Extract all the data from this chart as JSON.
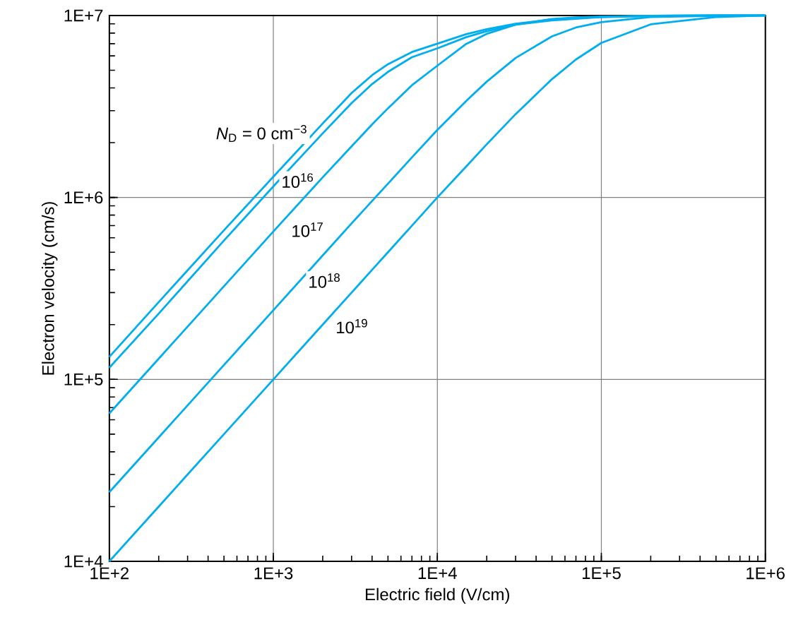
{
  "chart_data": {
    "type": "line",
    "xlabel": "Electric field (V/cm)",
    "ylabel": "Electron velocity (cm/s)",
    "x": [
      100,
      200,
      500,
      1000,
      2000,
      3000,
      4000,
      5000,
      7000,
      10000,
      15000,
      20000,
      30000,
      50000,
      70000,
      100000,
      200000,
      500000,
      1000000
    ],
    "series": [
      {
        "name": "*N*$_{D}$ = 0 cm$^{−3}$",
        "color": "#00aeef",
        "values": [
          133000,
          266000,
          660000,
          1300000,
          2550000,
          3750000,
          4700000,
          5400000,
          6300000,
          7000000,
          7900000,
          8400000,
          9000000,
          9500000,
          9700000,
          9800000,
          9950000,
          10000000,
          10000000
        ]
      },
      {
        "name": "10$^{16}$",
        "color": "#00aeef",
        "values": [
          116000,
          230000,
          580000,
          1150000,
          2250000,
          3300000,
          4200000,
          4900000,
          5900000,
          6600000,
          7600000,
          8200000,
          8900000,
          9400000,
          9600000,
          9800000,
          9950000,
          10000000,
          10000000
        ]
      },
      {
        "name": "10$^{17}$",
        "color": "#00aeef",
        "values": [
          65000,
          130000,
          325000,
          650000,
          1290000,
          1910000,
          2520000,
          3090000,
          4140000,
          5300000,
          6980000,
          7930000,
          8900000,
          9560000,
          9770000,
          9880000,
          9970000,
          10000000,
          10000000
        ]
      },
      {
        "name": "10$^{18}$",
        "color": "#00aeef",
        "values": [
          24000,
          48000,
          120000,
          240000,
          480000,
          720000,
          956000,
          1190000,
          1660000,
          2350000,
          3390000,
          4330000,
          5840000,
          7680000,
          8590000,
          9200000,
          9800000,
          9970000,
          10000000
        ]
      },
      {
        "name": "10$^{19}$",
        "color": "#00aeef",
        "values": [
          10000,
          20000,
          50000,
          100000,
          200000,
          300000,
          400000,
          500000,
          700000,
          1000000,
          1480000,
          1960000,
          2870000,
          4470000,
          5730000,
          7070000,
          8940000,
          9800000,
          10000000
        ]
      }
    ],
    "xlim": [
      100,
      1000000
    ],
    "ylim": [
      10000,
      10000000
    ],
    "xticks": [
      {
        "value": 100,
        "label": "1E+2"
      },
      {
        "value": 1000,
        "label": "1E+3"
      },
      {
        "value": 10000,
        "label": "1E+4"
      },
      {
        "value": 100000,
        "label": "1E+5"
      },
      {
        "value": 1000000,
        "label": "1E+6"
      }
    ],
    "yticks": [
      {
        "value": 10000,
        "label": "1E+4"
      },
      {
        "value": 100000,
        "label": "1E+5"
      },
      {
        "value": 1000000,
        "label": "1E+6"
      },
      {
        "value": 10000000,
        "label": "1E+7"
      }
    ],
    "log": "xy",
    "grid": true
  }
}
